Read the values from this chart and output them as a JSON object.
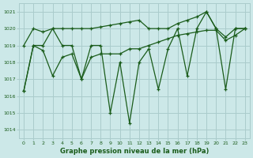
{
  "title": "Graphe pression niveau de la mer (hPa)",
  "bg_color": "#cce8e8",
  "line_color": "#1a5c1a",
  "grid_color": "#aacccc",
  "series1_x": [
    0,
    1,
    2,
    3,
    4,
    5,
    6,
    7,
    8,
    9,
    10,
    11,
    12,
    13,
    14,
    15,
    16,
    17,
    18,
    19,
    20,
    21,
    22,
    23
  ],
  "series1_y": [
    1019.0,
    1020.0,
    1019.8,
    1020.0,
    1020.0,
    1020.0,
    1020.0,
    1020.0,
    1020.1,
    1020.2,
    1020.3,
    1020.4,
    1020.5,
    1020.0,
    1020.0,
    1020.0,
    1020.3,
    1020.5,
    1020.7,
    1021.0,
    1020.0,
    1019.5,
    1020.0,
    1020.0
  ],
  "series2_x": [
    0,
    1,
    2,
    3,
    4,
    5,
    6,
    7,
    8,
    9,
    10,
    11,
    12,
    13,
    14,
    15,
    16,
    17,
    18,
    19,
    20,
    21,
    22,
    23
  ],
  "series2_y": [
    1016.3,
    1019.0,
    1019.0,
    1020.0,
    1019.0,
    1019.0,
    1017.0,
    1019.0,
    1019.0,
    1015.0,
    1018.0,
    1014.4,
    1018.0,
    1018.8,
    1016.4,
    1018.8,
    1020.0,
    1017.2,
    1020.0,
    1021.0,
    1020.0,
    1016.4,
    1020.0,
    1020.0
  ],
  "series3_x": [
    0,
    1,
    2,
    3,
    4,
    5,
    6,
    7,
    8,
    9,
    10,
    11,
    12,
    13,
    14,
    15,
    16,
    17,
    18,
    19,
    20,
    21,
    22,
    23
  ],
  "series3_y": [
    1016.3,
    1019.0,
    1018.7,
    1017.2,
    1018.3,
    1018.5,
    1017.0,
    1018.3,
    1018.5,
    1018.5,
    1018.5,
    1018.8,
    1018.8,
    1019.0,
    1019.2,
    1019.4,
    1019.6,
    1019.7,
    1019.8,
    1019.9,
    1019.9,
    1019.3,
    1019.6,
    1020.0
  ],
  "ylim": [
    1013.5,
    1021.5
  ],
  "yticks": [
    1014,
    1015,
    1016,
    1017,
    1018,
    1019,
    1020,
    1021
  ],
  "xlim": [
    -0.5,
    23.5
  ],
  "xticks": [
    0,
    1,
    2,
    3,
    4,
    5,
    6,
    7,
    8,
    9,
    10,
    11,
    12,
    13,
    14,
    15,
    16,
    17,
    18,
    19,
    20,
    21,
    22,
    23
  ]
}
